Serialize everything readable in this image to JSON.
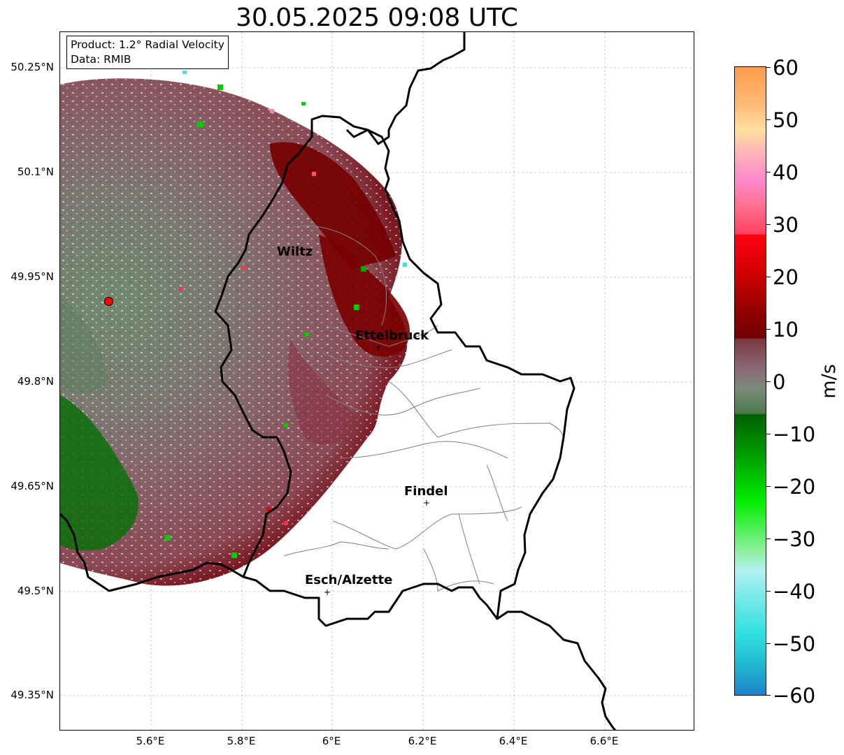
{
  "title": "30.05.2025 09:08 UTC",
  "info": {
    "product": "Product: 1.2° Radial Velocity",
    "data": "Data: RMIB"
  },
  "axes": {
    "lat_ticks": [
      "50.25°N",
      "50.1°N",
      "49.95°N",
      "49.8°N",
      "49.65°N",
      "49.5°N",
      "49.35°N"
    ],
    "lon_ticks": [
      "5.6°E",
      "5.8°E",
      "6°E",
      "6.2°E",
      "6.4°E",
      "6.6°E"
    ],
    "grid": true
  },
  "places": [
    {
      "name": "Wiltz",
      "icon": "none"
    },
    {
      "name": "Ettelbruck",
      "icon": "cross-marker-icon"
    },
    {
      "name": "Findel",
      "icon": "airport-cross-icon"
    },
    {
      "name": "Esch/Alzette",
      "icon": "cross-marker-icon"
    }
  ],
  "radar_site": {
    "icon": "red-dot-icon",
    "color": "#ff0000"
  },
  "colorbar": {
    "unit": "m/s",
    "ticks": [
      "60",
      "50",
      "40",
      "30",
      "20",
      "10",
      "0",
      "−10",
      "−20",
      "−30",
      "−40",
      "−50",
      "−60"
    ],
    "range": [
      -60,
      60
    ],
    "colors": {
      "receding_strong": "#ff9a4a",
      "receding": "#7a0000",
      "near_zero_pos": "#8a5a6a",
      "near_zero_neg": "#5e7c5e",
      "approaching": "#007000",
      "approaching_strong": "#00e000",
      "folded": "#30e0e0",
      "minimum": "#1e7fc8"
    }
  }
}
